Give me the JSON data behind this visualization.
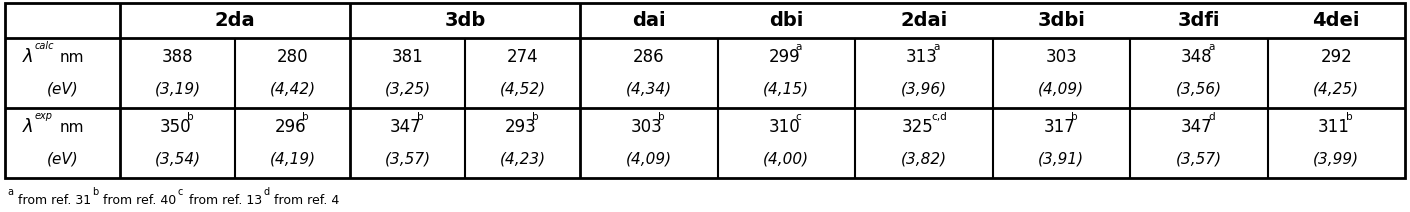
{
  "calc_nm": [
    "388",
    "280",
    "381",
    "274",
    "286",
    "299",
    "313",
    "303",
    "348",
    "292"
  ],
  "calc_nm_sup": [
    "",
    "",
    "",
    "",
    "",
    "a",
    "a",
    "",
    "a",
    ""
  ],
  "calc_ev": [
    "(3,19)",
    "(4,42)",
    "(3,25)",
    "(4,52)",
    "(4,34)",
    "(4,15)",
    "(3,96)",
    "(4,09)",
    "(3,56)",
    "(4,25)"
  ],
  "exp_nm": [
    "350",
    "296",
    "347",
    "293",
    "303",
    "310",
    "325",
    "317",
    "347",
    "311"
  ],
  "exp_nm_sup": [
    "b",
    "b",
    "b",
    "b",
    "b",
    "c",
    "c,d",
    "b",
    "d",
    "b"
  ],
  "exp_ev": [
    "(3,54)",
    "(4,19)",
    "(3,57)",
    "(4,23)",
    "(4,09)",
    "(4,00)",
    "(3,82)",
    "(3,91)",
    "(3,57)",
    "(3,99)"
  ],
  "col_headers": [
    "2da",
    "2da",
    "3db",
    "3db",
    "dai",
    "dbi",
    "2dai",
    "3dbi",
    "3dfi",
    "4dei"
  ],
  "footnote_parts": [
    [
      "a",
      " from ref. 31 "
    ],
    [
      "b",
      " from ref. 40 "
    ],
    [
      "c",
      " from ref. 13 "
    ],
    [
      "d",
      " from ref. 4"
    ]
  ],
  "bg": "#ffffff",
  "fg": "#000000"
}
